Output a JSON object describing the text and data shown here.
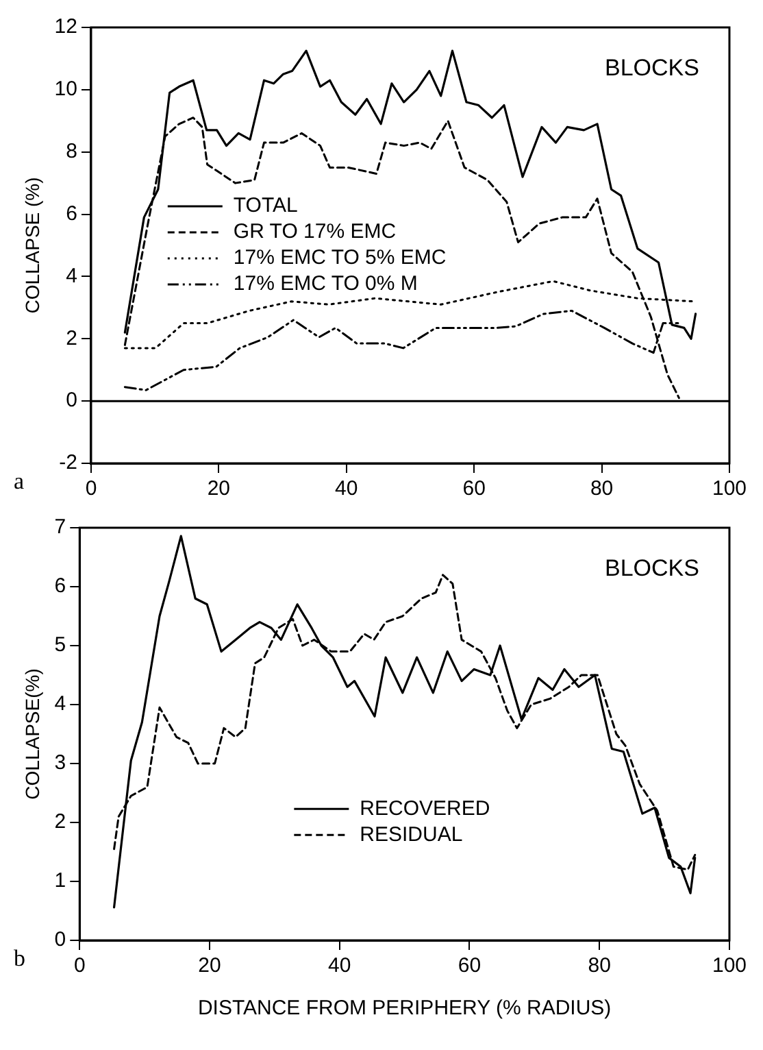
{
  "chart_data": [
    {
      "type": "line",
      "ylabel": "COLLAPSE (%)",
      "annotations": [
        "BLOCKS",
        "a"
      ],
      "xlim": [
        0,
        100
      ],
      "xticks": [
        0,
        20,
        40,
        60,
        80,
        100
      ],
      "ylim": [
        -2,
        12
      ],
      "yticks": [
        -2,
        0,
        2,
        4,
        6,
        8,
        10,
        12
      ],
      "grid": false,
      "legend": "center left",
      "marker": "none",
      "ref_lines": [
        {
          "axis": "y",
          "value": 0,
          "color": "#000000"
        }
      ],
      "series": [
        {
          "name": "TOTAL",
          "color": "#000000",
          "line_style": "solid",
          "x": [
            5.3,
            8.3,
            10.5,
            12.3,
            13.8,
            16,
            18.1,
            19.7,
            21.2,
            23.1,
            24.9,
            27.1,
            28.6,
            30.1,
            31.5,
            33.7,
            35.9,
            37.4,
            39.2,
            41.4,
            43.2,
            45.4,
            47.1,
            49,
            51,
            53,
            54.8,
            56.6,
            58.8,
            60.7,
            62.8,
            64.7,
            67.6,
            70.6,
            72.8,
            74.6,
            77.2,
            79.3,
            81.5,
            83,
            85.6,
            88.9,
            91,
            92.9,
            94,
            94.7
          ],
          "values": [
            2.2,
            5.9,
            6.8,
            9.9,
            10.1,
            10.3,
            8.7,
            8.7,
            8.2,
            8.6,
            8.4,
            10.3,
            10.2,
            10.5,
            10.6,
            11.25,
            10.1,
            10.3,
            9.6,
            9.2,
            9.7,
            8.9,
            10.2,
            9.6,
            10.0,
            10.6,
            9.8,
            11.25,
            9.6,
            9.5,
            9.1,
            9.5,
            7.2,
            8.8,
            8.3,
            8.8,
            8.7,
            8.9,
            6.8,
            6.6,
            4.9,
            4.45,
            2.45,
            2.35,
            2.0,
            2.8
          ]
        },
        {
          "name": "GR TO 17% EMC",
          "color": "#000000",
          "line_style": "dashed",
          "x": [
            5.3,
            9,
            11.6,
            13.8,
            16,
            17.4,
            18.2,
            20.4,
            22.6,
            25.6,
            27.1,
            30.1,
            33,
            35.9,
            37.4,
            40.3,
            44.7,
            46.1,
            49,
            51.5,
            53.3,
            55.9,
            58.5,
            62.1,
            65.1,
            66.9,
            70.2,
            73.8,
            77.5,
            79.3,
            81.5,
            84.8,
            87.7,
            90.3,
            92.1
          ],
          "values": [
            1.8,
            5.8,
            8.5,
            8.9,
            9.1,
            8.8,
            7.6,
            7.3,
            7.0,
            7.1,
            8.3,
            8.3,
            8.6,
            8.2,
            7.5,
            7.5,
            7.3,
            8.3,
            8.2,
            8.3,
            8.1,
            9.0,
            7.5,
            7.1,
            6.4,
            5.1,
            5.7,
            5.9,
            5.9,
            6.5,
            4.75,
            4.15,
            2.7,
            0.85,
            0.1
          ]
        },
        {
          "name": "17% EMC TO 5% EMC",
          "color": "#000000",
          "line_style": "dotted",
          "x": [
            5.3,
            10.1,
            14.5,
            18.2,
            24.8,
            31.4,
            37.2,
            44.5,
            54.8,
            63.6,
            72.4,
            78.2,
            85.6,
            94.4
          ],
          "values": [
            1.7,
            1.7,
            2.5,
            2.5,
            2.9,
            3.2,
            3.1,
            3.3,
            3.1,
            3.5,
            3.85,
            3.55,
            3.3,
            3.2
          ]
        },
        {
          "name": "17% EMC TO 0% M",
          "color": "#000000",
          "line_style": "dashdot",
          "x": [
            5.3,
            8.6,
            14.5,
            19.6,
            23.3,
            27.7,
            31.7,
            35.7,
            38.3,
            41.6,
            46,
            48.9,
            54,
            63.6,
            66.5,
            70.9,
            75.3,
            80.4,
            84.8,
            88.1,
            89.6,
            92.1
          ],
          "values": [
            0.45,
            0.35,
            1.0,
            1.1,
            1.7,
            2.05,
            2.6,
            2.05,
            2.35,
            1.85,
            1.85,
            1.7,
            2.35,
            2.35,
            2.4,
            2.8,
            2.9,
            2.35,
            1.85,
            1.55,
            2.5,
            2.5
          ]
        }
      ]
    },
    {
      "type": "line",
      "xlabel": "DISTANCE FROM PERIPHERY (% RADIUS)",
      "ylabel": "COLLAPSE(%)",
      "annotations": [
        "BLOCKS",
        "b"
      ],
      "xlim": [
        0,
        100
      ],
      "xticks": [
        0,
        20,
        40,
        60,
        80,
        100
      ],
      "ylim": [
        0,
        7
      ],
      "yticks": [
        0,
        1,
        2,
        3,
        4,
        5,
        6,
        7
      ],
      "grid": false,
      "legend": "bottom",
      "marker": "none",
      "series": [
        {
          "name": "RECOVERED",
          "color": "#000000",
          "line_style": "solid",
          "x": [
            5.3,
            7.9,
            9.6,
            12.3,
            13.8,
            15.6,
            17.8,
            19.6,
            21.8,
            24,
            26.2,
            27.7,
            29.5,
            31,
            33.5,
            35.7,
            37.2,
            39,
            41.2,
            42.3,
            45.4,
            47.1,
            49.7,
            51.9,
            54.4,
            56.6,
            58.8,
            60.7,
            63.2,
            64.7,
            68,
            70.6,
            72.8,
            74.6,
            76.8,
            79.3,
            81.9,
            83.7,
            86.6,
            88.5,
            90.7,
            92.5,
            94,
            94.7
          ],
          "values": [
            0.56,
            3.05,
            3.7,
            5.5,
            6.1,
            6.86,
            5.8,
            5.7,
            4.9,
            5.1,
            5.3,
            5.4,
            5.3,
            5.1,
            5.7,
            5.3,
            5.0,
            4.8,
            4.3,
            4.4,
            3.8,
            4.8,
            4.2,
            4.8,
            4.2,
            4.9,
            4.4,
            4.6,
            4.5,
            5.0,
            3.75,
            4.45,
            4.25,
            4.6,
            4.3,
            4.5,
            3.25,
            3.2,
            2.15,
            2.25,
            1.4,
            1.25,
            0.8,
            1.4
          ]
        },
        {
          "name": "RESIDUAL",
          "color": "#000000",
          "line_style": "dashed",
          "x": [
            5.3,
            6,
            7.9,
            10.4,
            12.3,
            14.9,
            16.7,
            18.2,
            20.8,
            22.2,
            24,
            25.5,
            27,
            28.4,
            30.6,
            32.8,
            34.3,
            36.1,
            38.7,
            41.6,
            43.8,
            45.3,
            47.1,
            49.7,
            52.6,
            54.8,
            55.9,
            57.4,
            58.8,
            61.8,
            64,
            65.8,
            67.3,
            69.5,
            72.4,
            75.3,
            77.2,
            79.7,
            82.6,
            84,
            86.2,
            88.9,
            91.4,
            93.6,
            94.7
          ],
          "values": [
            1.55,
            2.1,
            2.45,
            2.6,
            3.95,
            3.45,
            3.35,
            3.0,
            3.0,
            3.6,
            3.45,
            3.6,
            4.7,
            4.8,
            5.3,
            5.45,
            5.0,
            5.1,
            4.9,
            4.9,
            5.2,
            5.1,
            5.4,
            5.5,
            5.8,
            5.9,
            6.2,
            6.05,
            5.1,
            4.9,
            4.45,
            3.9,
            3.6,
            4.0,
            4.1,
            4.3,
            4.5,
            4.5,
            3.5,
            3.3,
            2.65,
            2.2,
            1.25,
            1.2,
            1.45
          ]
        }
      ]
    }
  ]
}
